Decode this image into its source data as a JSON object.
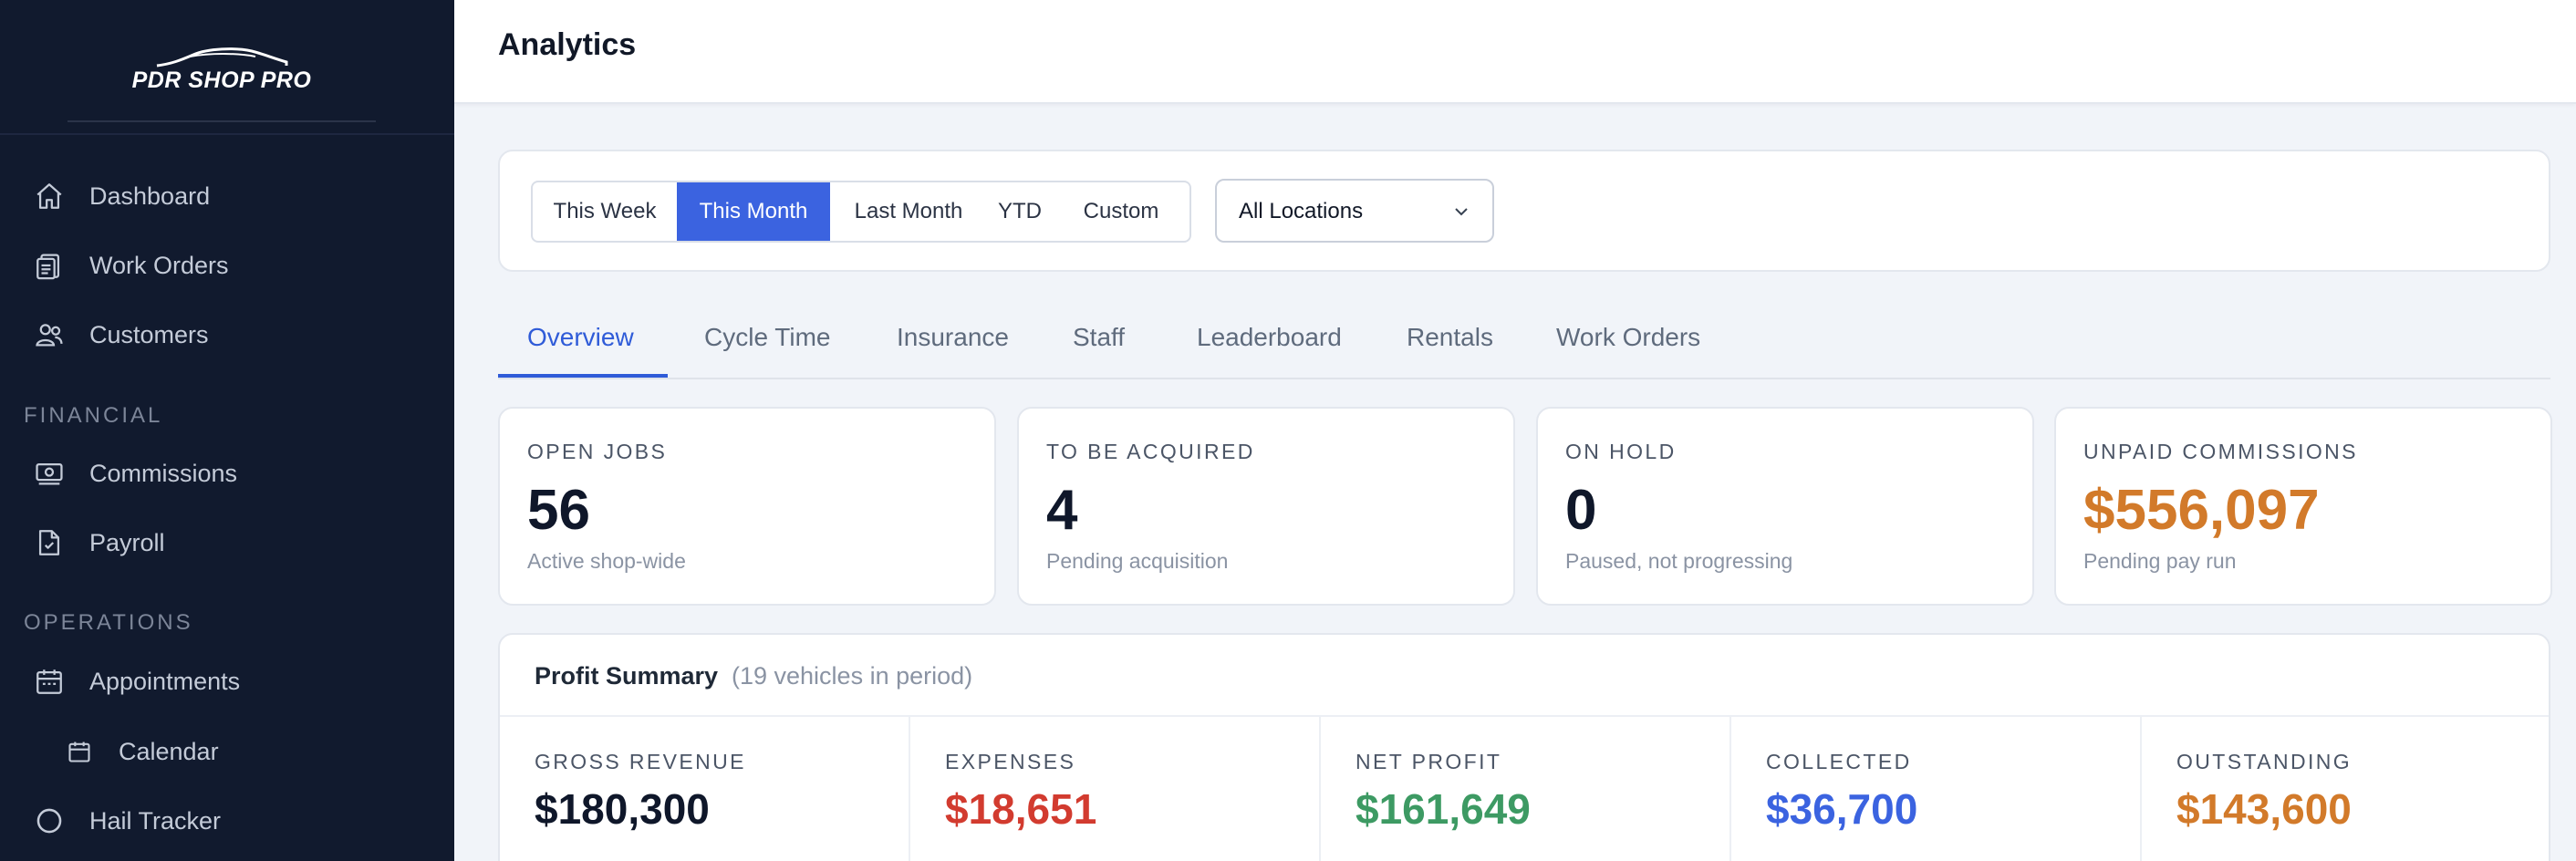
{
  "brand": {
    "name": "PDR SHOP PRO"
  },
  "sidebar": {
    "items": [
      {
        "label": "Dashboard",
        "icon": "home-icon"
      },
      {
        "label": "Work Orders",
        "icon": "clipboard-icon"
      },
      {
        "label": "Customers",
        "icon": "users-icon"
      }
    ],
    "sections": [
      {
        "label": "FINANCIAL",
        "items": [
          {
            "label": "Commissions",
            "icon": "money-icon"
          },
          {
            "label": "Payroll",
            "icon": "document-check-icon"
          }
        ]
      },
      {
        "label": "OPERATIONS",
        "items": [
          {
            "label": "Appointments",
            "icon": "calendar-icon"
          },
          {
            "label": "Calendar",
            "icon": "calendar-small-icon"
          },
          {
            "label": "Hail Tracker",
            "icon": "circle-icon"
          }
        ]
      }
    ]
  },
  "header": {
    "title": "Analytics"
  },
  "filters": {
    "periods": [
      "This Week",
      "This Month",
      "Last Month",
      "YTD",
      "Custom"
    ],
    "active_period": "This Month",
    "location": "All Locations"
  },
  "tabs": [
    "Overview",
    "Cycle Time",
    "Insurance",
    "Staff",
    "Leaderboard",
    "Rentals",
    "Work Orders"
  ],
  "active_tab": "Overview",
  "stats": [
    {
      "title": "OPEN JOBS",
      "value": "56",
      "sub": "Active shop-wide",
      "color": "#0f172a"
    },
    {
      "title": "TO BE ACQUIRED",
      "value": "4",
      "sub": "Pending acquisition",
      "color": "#0f172a"
    },
    {
      "title": "ON HOLD",
      "value": "0",
      "sub": "Paused, not progressing",
      "color": "#0f172a"
    },
    {
      "title": "UNPAID COMMISSIONS",
      "value": "$556,097",
      "sub": "Pending pay run",
      "color": "#d27a2a"
    }
  ],
  "profit_summary": {
    "title": "Profit Summary",
    "count": "(19 vehicles in period)",
    "metrics": [
      {
        "title": "GROSS REVENUE",
        "value": "$180,300",
        "color": "#0f172a"
      },
      {
        "title": "EXPENSES",
        "value": "$18,651",
        "color": "#d23b2f"
      },
      {
        "title": "NET PROFIT",
        "value": "$161,649",
        "color": "#3d9a63"
      },
      {
        "title": "COLLECTED",
        "value": "$36,700",
        "color": "#3b63e0"
      },
      {
        "title": "OUTSTANDING",
        "value": "$143,600",
        "color": "#d27a2a"
      }
    ]
  },
  "colors": {
    "sidebar_bg": "#111a2e",
    "accent": "#3b63e0"
  }
}
